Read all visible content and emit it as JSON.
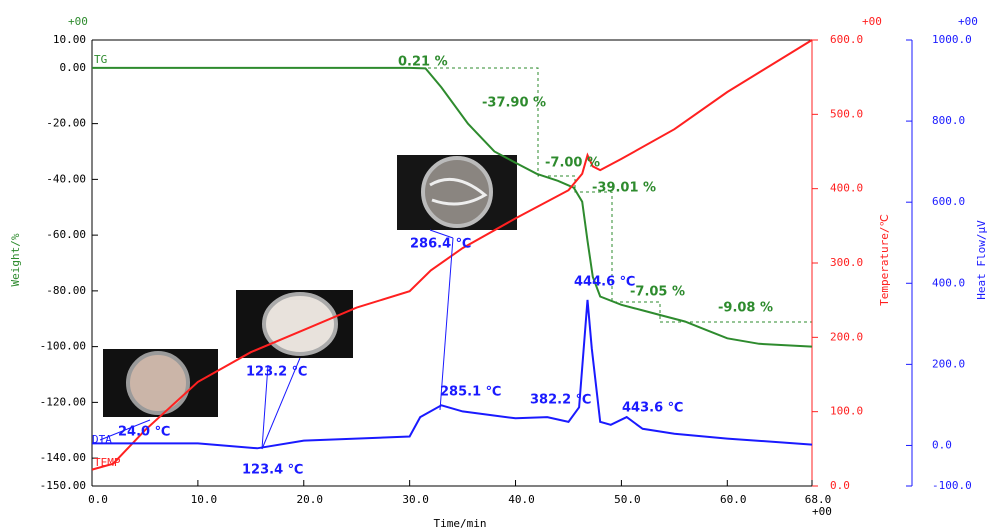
{
  "chart_data": {
    "type": "line",
    "xlabel": "Time/min",
    "ylabel": "Weight/%",
    "y2label": "Temperature/℃",
    "y3label": "Heat Flow/μV",
    "exponent": "+00",
    "xlim": [
      0,
      68
    ],
    "xticks": [
      {
        "value": 0,
        "label": "0.0"
      },
      {
        "value": 10,
        "label": "10.0"
      },
      {
        "value": 20,
        "label": "20.0"
      },
      {
        "value": 30,
        "label": "30.0"
      },
      {
        "value": 40,
        "label": "40.0"
      },
      {
        "value": 50,
        "label": "50.0"
      },
      {
        "value": 60,
        "label": "60.0"
      },
      {
        "value": 68,
        "label": "68.0"
      }
    ],
    "ylim": [
      -150,
      10
    ],
    "yticks": [
      {
        "value": 10,
        "label": "10.00"
      },
      {
        "value": 0,
        "label": "0.00"
      },
      {
        "value": -20,
        "label": "-20.00"
      },
      {
        "value": -40,
        "label": "-40.00"
      },
      {
        "value": -60,
        "label": "-60.00"
      },
      {
        "value": -80,
        "label": "-80.00"
      },
      {
        "value": -100,
        "label": "-100.00"
      },
      {
        "value": -120,
        "label": "-120.00"
      },
      {
        "value": -140,
        "label": "-140.00"
      },
      {
        "value": -150,
        "label": "-150.00"
      }
    ],
    "y2lim": [
      0,
      600
    ],
    "y2ticks": [
      {
        "value": 0,
        "label": "0.0"
      },
      {
        "value": 100,
        "label": "100.0"
      },
      {
        "value": 200,
        "label": "200.0"
      },
      {
        "value": 300,
        "label": "300.0"
      },
      {
        "value": 400,
        "label": "400.0"
      },
      {
        "value": 500,
        "label": "500.0"
      },
      {
        "value": 600,
        "label": "600.0"
      }
    ],
    "y3lim": [
      -100,
      1000
    ],
    "y3ticks": [
      {
        "value": -100,
        "label": "-100.0"
      },
      {
        "value": 0,
        "label": "0.0"
      },
      {
        "value": 200,
        "label": "200.0"
      },
      {
        "value": 400,
        "label": "400.0"
      },
      {
        "value": 600,
        "label": "600.0"
      },
      {
        "value": 800,
        "label": "800.0"
      },
      {
        "value": 1000,
        "label": "1000.0"
      }
    ],
    "series": [
      {
        "name": "TG",
        "color": "#2e8b2e",
        "axis": "y",
        "x": [
          0,
          30,
          31.5,
          33,
          35.5,
          38,
          40,
          42,
          44,
          45.5,
          46.3,
          46.8,
          47.3,
          48,
          50,
          52,
          54,
          56,
          58,
          60,
          63,
          68
        ],
        "values": [
          0,
          0,
          -0.2,
          -7,
          -20,
          -30,
          -34,
          -38,
          -40.5,
          -43,
          -48,
          -62,
          -75,
          -82,
          -85,
          -87,
          -89,
          -91,
          -94,
          -97,
          -99,
          -100
        ]
      },
      {
        "name": "TEMP",
        "color": "#ff2020",
        "axis": "y2",
        "x": [
          0,
          2,
          5,
          10,
          15,
          20,
          25,
          30,
          32,
          35,
          40,
          45,
          46.3,
          46.8,
          47.3,
          48,
          50,
          55,
          60,
          68
        ],
        "values": [
          22,
          30,
          75,
          140,
          180,
          210,
          240,
          262,
          290,
          320,
          360,
          398,
          420,
          445,
          430,
          425,
          440,
          480,
          530,
          600
        ]
      },
      {
        "name": "DTA",
        "color": "#1a1aff",
        "axis": "y3",
        "x": [
          0,
          10,
          15.6,
          20,
          30,
          31,
          33,
          35,
          40,
          43,
          45,
          46,
          46.8,
          47.2,
          48,
          49,
          50.5,
          52,
          55,
          60,
          68
        ],
        "values": [
          5,
          5,
          -7,
          12,
          22,
          70,
          99,
          84,
          67,
          70,
          58,
          94,
          359,
          239,
          58,
          51,
          70,
          41,
          29,
          17,
          2
        ]
      }
    ],
    "annotations": [
      {
        "text": "0.21 %"
      },
      {
        "text": "-37.90 %"
      },
      {
        "text": "-7.00 %"
      },
      {
        "text": "-39.01 %"
      },
      {
        "text": "-7.05 %"
      },
      {
        "text": "-9.08 %"
      },
      {
        "text": "24.0 ℃"
      },
      {
        "text": "123.2 ℃"
      },
      {
        "text": "123.4 ℃"
      },
      {
        "text": "286.4 ℃"
      },
      {
        "text": "285.1 ℃"
      },
      {
        "text": "382.2 ℃"
      },
      {
        "text": "444.6 ℃"
      },
      {
        "text": "443.6 ℃"
      }
    ]
  }
}
